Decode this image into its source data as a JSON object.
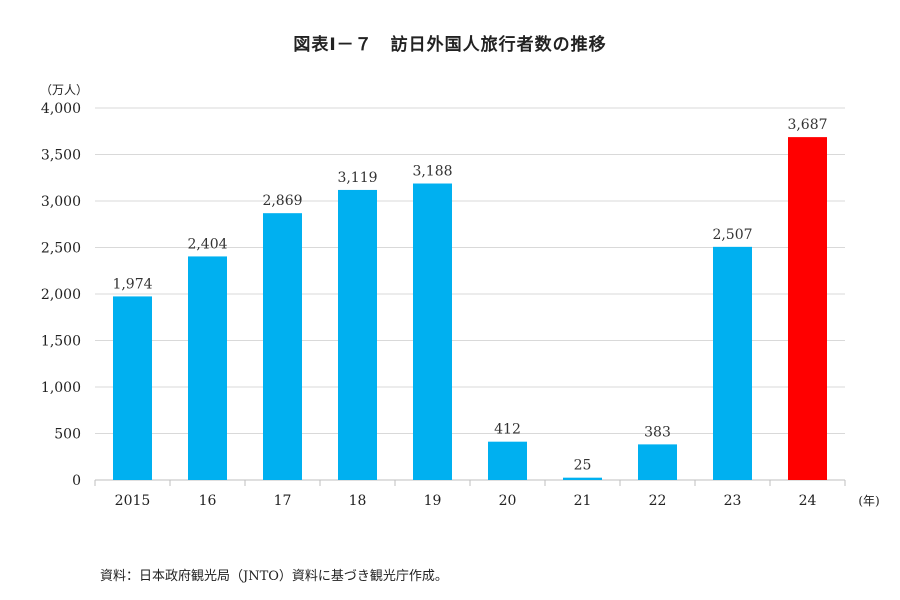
{
  "title": "図表Ⅰ－７　訪日外国人旅行者数の推移",
  "unit_label": "（万人）",
  "x_unit_label": "(年)",
  "source": "資料：日本政府観光局（JNTO）資料に基づき観光庁作成。",
  "colors": {
    "default_bar": "#00B0F0",
    "highlight_bar": "#FF0000",
    "grid": "#D9D9D9",
    "axis": "#BFBFBF"
  },
  "chart_data": {
    "type": "bar",
    "title": "図表Ⅰ－７　訪日外国人旅行者数の推移",
    "ylabel": "（万人）",
    "xlabel": "(年)",
    "categories": [
      "2015",
      "16",
      "17",
      "18",
      "19",
      "20",
      "21",
      "22",
      "23",
      "24"
    ],
    "values": [
      1974,
      2404,
      2869,
      3119,
      3188,
      412,
      25,
      383,
      2507,
      3687
    ],
    "value_labels": [
      "1,974",
      "2,404",
      "2,869",
      "3,119",
      "3,188",
      "412",
      "25",
      "383",
      "2,507",
      "3,687"
    ],
    "highlight_index": 9,
    "ylim": [
      0,
      4000
    ],
    "yticks": [
      0,
      500,
      1000,
      1500,
      2000,
      2500,
      3000,
      3500,
      4000
    ],
    "ytick_labels": [
      "0",
      "500",
      "1,000",
      "1,500",
      "2,000",
      "2,500",
      "3,000",
      "3,500",
      "4,000"
    ],
    "grid": true,
    "legend": "none"
  }
}
